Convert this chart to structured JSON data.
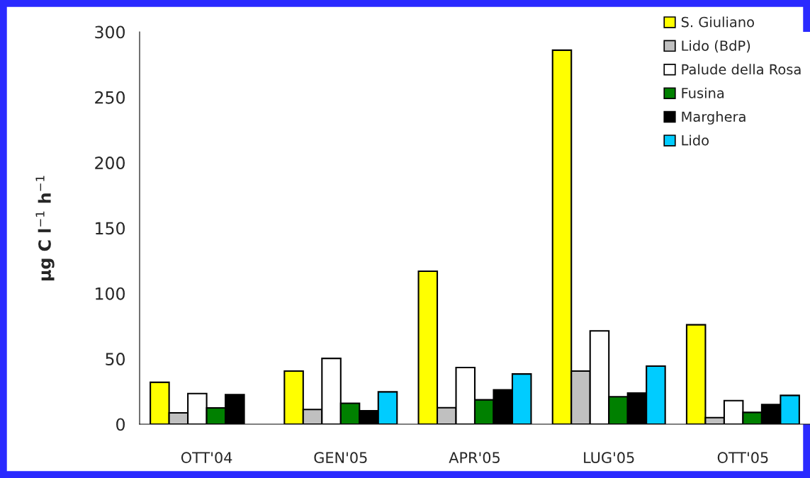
{
  "chart_data": {
    "type": "bar",
    "ylabel": "μg C l$^{−1}$ h$^{−1}$",
    "categories": [
      "OTT'04",
      "GEN'05",
      "APR'05",
      "LUG'05",
      "OTT'05"
    ],
    "series": [
      {
        "name": "S. Giuliano",
        "color": "#ffff00",
        "values": [
          32,
          40.6,
          117,
          286,
          76
        ]
      },
      {
        "name": "Lido (BdP)",
        "color": "#c0c0c0",
        "values": [
          8.7,
          11.2,
          12.6,
          40.6,
          5
        ]
      },
      {
        "name": "Palude della Rosa",
        "color": "#ffffff",
        "values": [
          23.4,
          50.3,
          43.3,
          71.3,
          18
        ]
      },
      {
        "name": "Fusina",
        "color": "#008000",
        "values": [
          12.5,
          16,
          18.6,
          21,
          9
        ]
      },
      {
        "name": "Marghera",
        "color": "#000000",
        "values": [
          22.6,
          10.3,
          26.2,
          23.8,
          15
        ]
      },
      {
        "name": "Lido",
        "color": "#00ccff",
        "values": [
          null,
          24.7,
          38.4,
          44.4,
          22
        ]
      }
    ],
    "ylim": [
      0,
      300
    ],
    "yticks": [
      0,
      50,
      100,
      150,
      200,
      250,
      300
    ],
    "grid": false,
    "legend": "top right"
  }
}
